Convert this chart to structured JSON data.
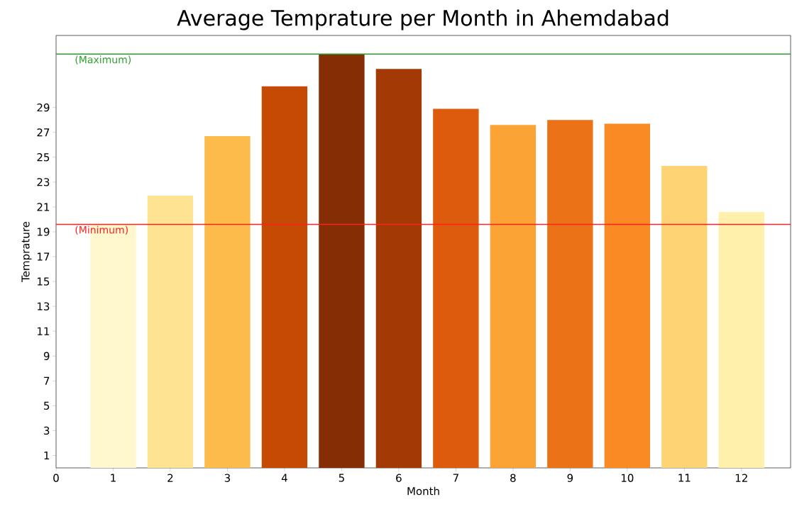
{
  "chart_data": {
    "type": "bar",
    "title": "Average Temprature per Month in Ahemdabad",
    "xlabel": "Month",
    "ylabel": "Temprature",
    "x": [
      1,
      2,
      3,
      4,
      5,
      6,
      7,
      8,
      9,
      10,
      11,
      12
    ],
    "values": [
      19.6,
      21.9,
      26.7,
      30.7,
      33.3,
      32.1,
      28.9,
      27.6,
      28.0,
      27.7,
      24.3,
      20.6
    ],
    "colors": [
      "#fff7cd",
      "#fde392",
      "#fdbb49",
      "#c54a04",
      "#852d05",
      "#a33904",
      "#dc5b0c",
      "#fca335",
      "#ec7218",
      "#f98a24",
      "#fdd374",
      "#fff0ac"
    ],
    "xlim": [
      0,
      12.86
    ],
    "xticks": [
      0,
      1,
      2,
      3,
      4,
      5,
      6,
      7,
      8,
      9,
      10,
      11,
      12
    ],
    "ylim": [
      0,
      34.8
    ],
    "yticks": [
      1,
      3,
      5,
      7,
      9,
      11,
      13,
      15,
      17,
      19,
      21,
      23,
      25,
      27,
      29
    ],
    "ref_lines": [
      {
        "axis": "y",
        "value": 33.3,
        "label": "(Maximum)",
        "color": "#2ca02c"
      },
      {
        "axis": "y",
        "value": 19.6,
        "label": "(Minimum)",
        "color": "#ff2020"
      }
    ]
  }
}
